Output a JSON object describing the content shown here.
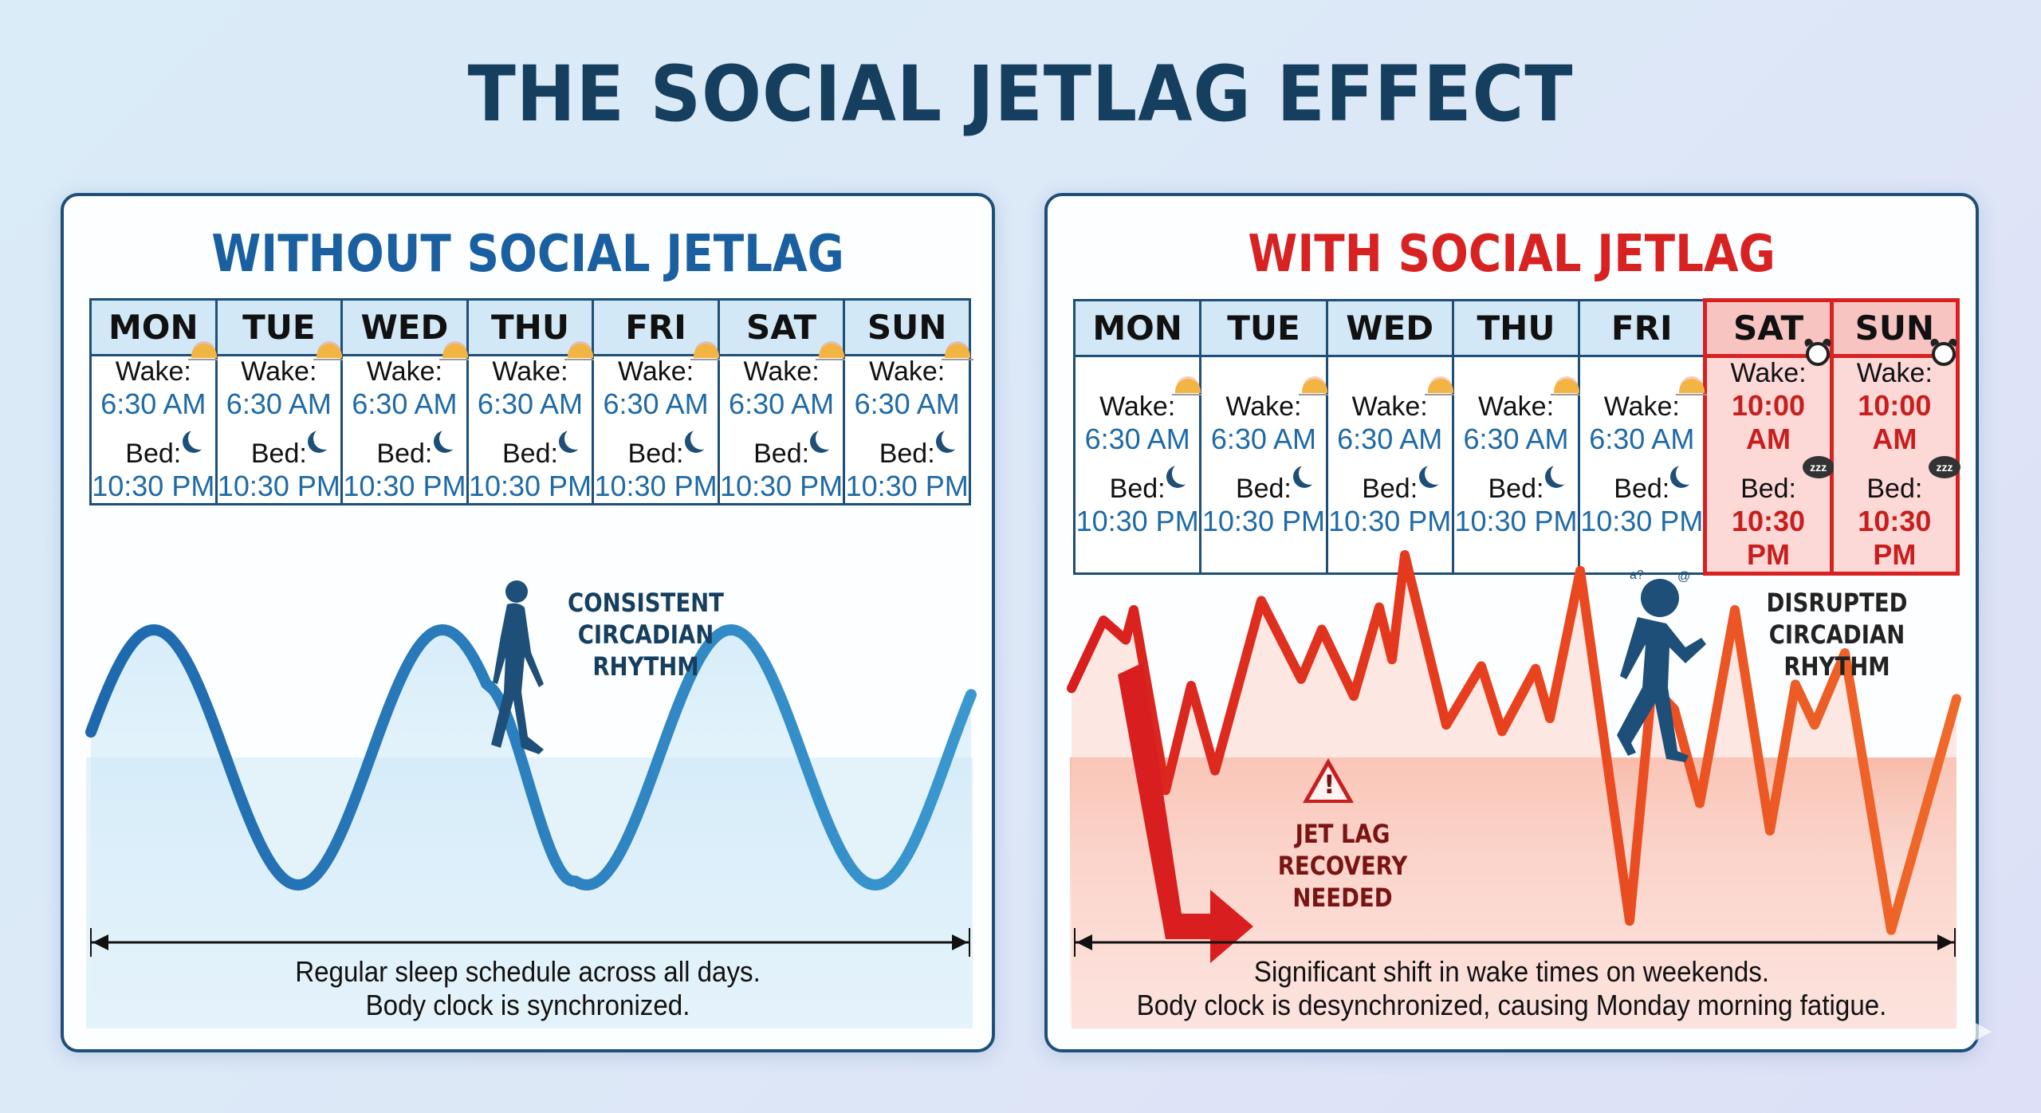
{
  "title": "THE SOCIAL JETLAG EFFECT",
  "colors": {
    "title": "#163f5f",
    "without_accent": "#1a5fa0",
    "with_accent": "#d82222",
    "wave_blue": "#2a7fc0",
    "wave_red": "#e8421e",
    "figure": "#1d4f78"
  },
  "panels": [
    {
      "id": "without",
      "title": "WITHOUT SOCIAL JETLAG",
      "days": [
        {
          "day": "MON",
          "wake_label": "Wake:",
          "wake": "6:30 AM",
          "bed_label": "Bed:",
          "bed": "10:30 PM",
          "wake_icon": "sunrise-icon",
          "bed_icon": "moon-icon",
          "weekend": false
        },
        {
          "day": "TUE",
          "wake_label": "Wake:",
          "wake": "6:30 AM",
          "bed_label": "Bed:",
          "bed": "10:30 PM",
          "wake_icon": "sunrise-icon",
          "bed_icon": "moon-icon",
          "weekend": false
        },
        {
          "day": "WED",
          "wake_label": "Wake:",
          "wake": "6:30 AM",
          "bed_label": "Bed:",
          "bed": "10:30 PM",
          "wake_icon": "sunrise-icon",
          "bed_icon": "moon-icon",
          "weekend": false
        },
        {
          "day": "THU",
          "wake_label": "Wake:",
          "wake": "6:30 AM",
          "bed_label": "Bed:",
          "bed": "10:30 PM",
          "wake_icon": "sunrise-icon",
          "bed_icon": "moon-icon",
          "weekend": false
        },
        {
          "day": "FRI",
          "wake_label": "Wake:",
          "wake": "6:30 AM",
          "bed_label": "Bed:",
          "bed": "10:30 PM",
          "wake_icon": "sunrise-icon",
          "bed_icon": "moon-icon",
          "weekend": false
        },
        {
          "day": "SAT",
          "wake_label": "Wake:",
          "wake": "6:30 AM",
          "bed_label": "Bed:",
          "bed": "10:30 PM",
          "wake_icon": "sunrise-icon",
          "bed_icon": "moon-icon",
          "weekend": false
        },
        {
          "day": "SUN",
          "wake_label": "Wake:",
          "wake": "6:30 AM",
          "bed_label": "Bed:",
          "bed": "10:30 PM",
          "wake_icon": "sunrise-icon",
          "bed_icon": "moon-icon",
          "weekend": false
        }
      ],
      "annotation": [
        "CONSISTENT",
        "CIRCADIAN",
        "RHYTHM"
      ],
      "figure_icon": "walking-person-icon",
      "caption": [
        "Regular sleep schedule across all days.",
        "Body clock is synchronized."
      ]
    },
    {
      "id": "with",
      "title": "WITH SOCIAL JETLAG",
      "days": [
        {
          "day": "MON",
          "wake_label": "Wake:",
          "wake": "6:30 AM",
          "bed_label": "Bed:",
          "bed": "10:30 PM",
          "wake_icon": "sunrise-icon",
          "bed_icon": "moon-icon",
          "weekend": false
        },
        {
          "day": "TUE",
          "wake_label": "Wake:",
          "wake": "6:30 AM",
          "bed_label": "Bed:",
          "bed": "10:30 PM",
          "wake_icon": "sunrise-icon",
          "bed_icon": "moon-icon",
          "weekend": false
        },
        {
          "day": "WED",
          "wake_label": "Wake:",
          "wake": "6:30 AM",
          "bed_label": "Bed:",
          "bed": "10:30 PM",
          "wake_icon": "sunrise-icon",
          "bed_icon": "moon-icon",
          "weekend": false
        },
        {
          "day": "THU",
          "wake_label": "Wake:",
          "wake": "6:30 AM",
          "bed_label": "Bed:",
          "bed": "10:30 PM",
          "wake_icon": "sunrise-icon",
          "bed_icon": "moon-icon",
          "weekend": false
        },
        {
          "day": "FRI",
          "wake_label": "Wake:",
          "wake": "6:30 AM",
          "bed_label": "Bed:",
          "bed": "10:30 PM",
          "wake_icon": "sunrise-icon",
          "bed_icon": "moon-icon",
          "weekend": false
        },
        {
          "day": "SAT",
          "wake_label": "Wake:",
          "wake": "10:00 AM",
          "bed_label": "Bed:",
          "bed": "10:30 PM",
          "wake_icon": "alarm-clock-icon",
          "bed_icon": "zzz-bubble-icon",
          "weekend": true
        },
        {
          "day": "SUN",
          "wake_label": "Wake:",
          "wake": "10:00 AM",
          "bed_label": "Bed:",
          "bed": "10:30 PM",
          "wake_icon": "alarm-clock-icon",
          "bed_icon": "zzz-bubble-icon",
          "weekend": true
        }
      ],
      "annotation": [
        "DISRUPTED",
        "CIRCADIAN",
        "RHYTHM"
      ],
      "warning": [
        "JET LAG",
        "RECOVERY",
        "NEEDED"
      ],
      "figure_icon": "dizzy-person-icon",
      "caption": [
        "Significant shift in wake times on weekends.",
        "Body clock is desynchronized, causing Monday morning fatigue."
      ]
    }
  ]
}
